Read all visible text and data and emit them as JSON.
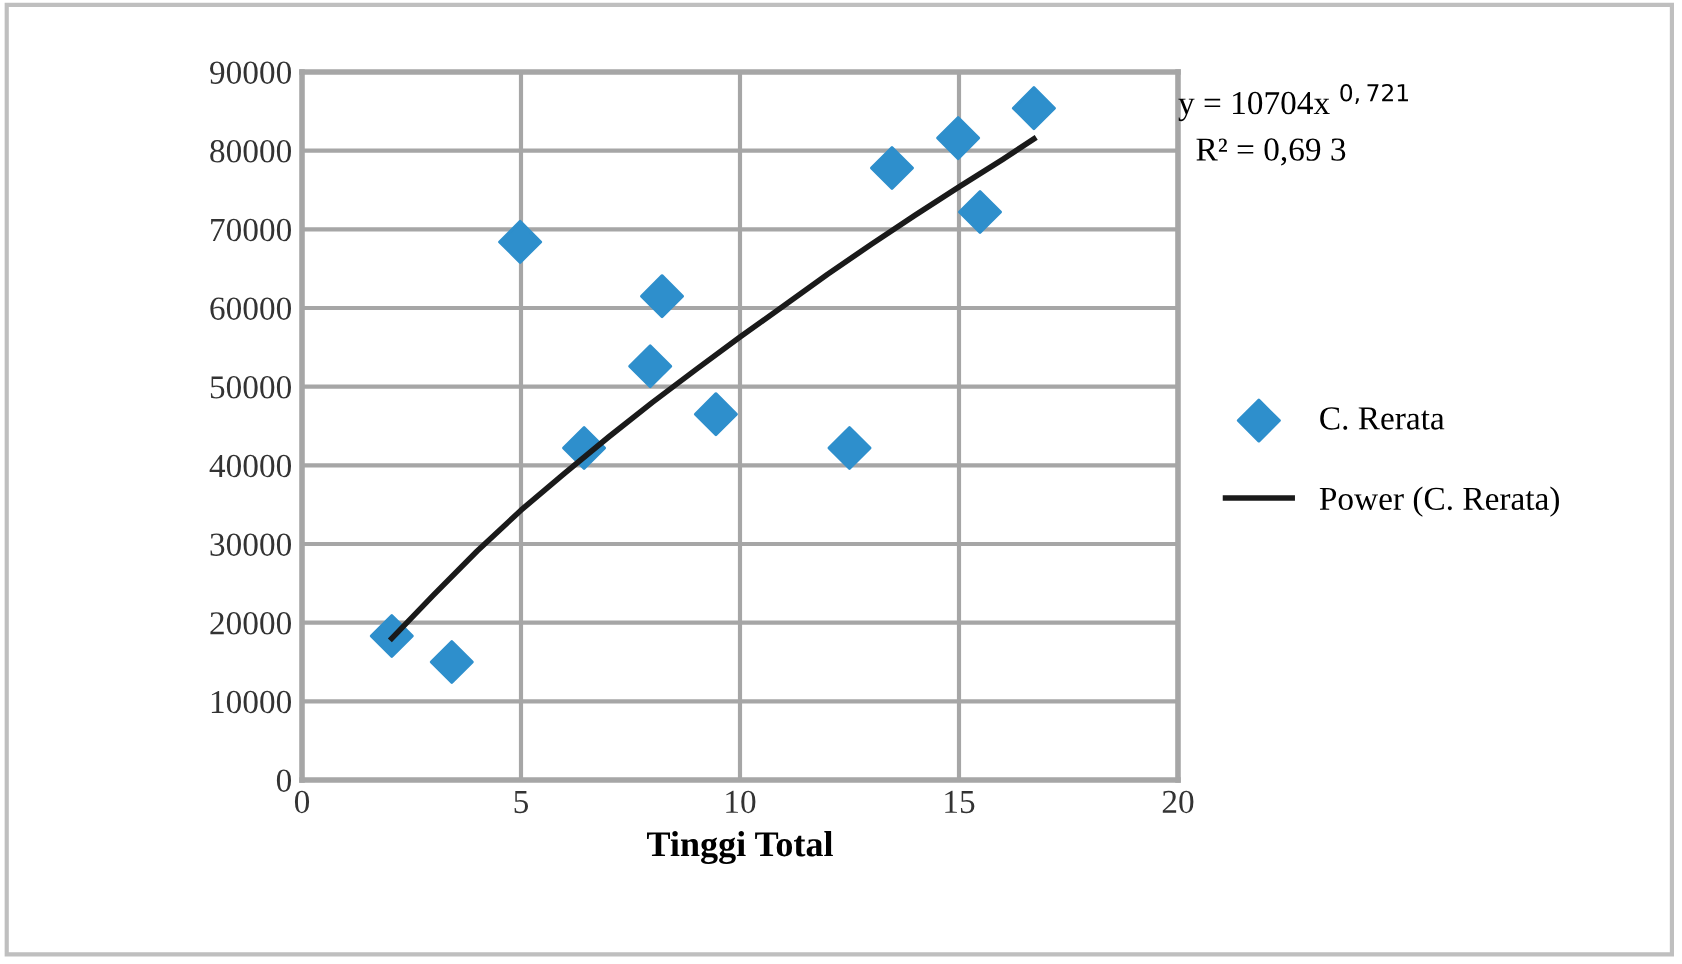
{
  "chart_data": {
    "type": "scatter",
    "xlabel": "Tinggi Total",
    "xlim": [
      0,
      20
    ],
    "xticks": [
      0,
      5,
      10,
      15,
      20
    ],
    "ylim": [
      0,
      90000
    ],
    "yticks": [
      0,
      10000,
      20000,
      30000,
      40000,
      50000,
      60000,
      70000,
      80000,
      90000
    ],
    "grid": true,
    "legend": "right",
    "marker": "diamond",
    "series": [
      {
        "name": "C. Rerata",
        "color": "#2e8fcc",
        "x": [
          2.05,
          3.42,
          4.98,
          6.44,
          7.95,
          8.22,
          9.45,
          12.5,
          13.47,
          14.98,
          15.48,
          16.71
        ],
        "values": [
          18300,
          15000,
          68400,
          42200,
          52600,
          61500,
          46500,
          42200,
          77800,
          81600,
          72200,
          85400
        ]
      },
      {
        "name": "Power (C. Rerata)",
        "type": "line",
        "color": "#1a1a1a",
        "marker": "none",
        "x": [
          2.05,
          3,
          4,
          5,
          6,
          7,
          8,
          9,
          10,
          11,
          12,
          13,
          14,
          15,
          16,
          16.71
        ],
        "values": [
          18000,
          23500,
          29100,
          34300,
          39000,
          43600,
          48000,
          52200,
          56300,
          60300,
          64300,
          68100,
          71800,
          75400,
          78900,
          81500
        ]
      }
    ],
    "annotations": [
      "y = 10704x $^{0,721}$",
      "R² = 0,69 3"
    ]
  }
}
